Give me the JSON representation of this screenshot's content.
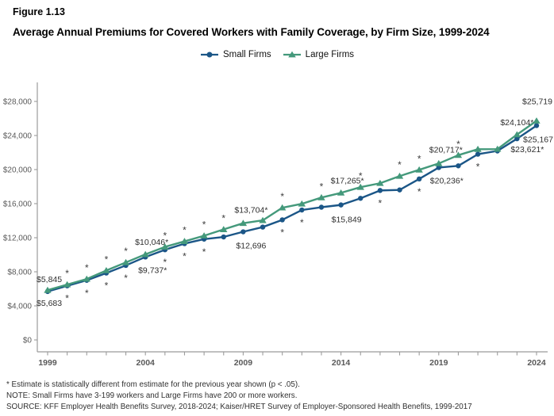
{
  "figure": {
    "number": "Figure 1.13",
    "title": "Average Annual Premiums for Covered Workers with Family Coverage, by Firm Size, 1999-2024"
  },
  "footnotes": [
    "* Estimate is statistically different from estimate for the previous year shown (p < .05).",
    "NOTE: Small Firms have 3-199 workers and Large Firms have 200 or more workers.",
    "SOURCE: KFF Employer Health Benefits Survey, 2018-2024; Kaiser/HRET Survey of Employer-Sponsored Health Benefits, 1999-2017"
  ],
  "chart_data": {
    "type": "line",
    "title": "Average Annual Premiums for Covered Workers with Family Coverage, by Firm Size, 1999-2024",
    "figure_label": "Figure 1.13",
    "x": [
      1999,
      2000,
      2001,
      2002,
      2003,
      2004,
      2005,
      2006,
      2007,
      2008,
      2009,
      2010,
      2011,
      2012,
      2013,
      2014,
      2015,
      2016,
      2017,
      2018,
      2019,
      2020,
      2021,
      2022,
      2023,
      2024
    ],
    "x_tick_label_every": 5,
    "ylim": [
      0,
      28000
    ],
    "y_tick_step": 4000,
    "y_tick_prefix": "$",
    "grid": false,
    "legend_position": "top-center",
    "significance_note": "* = statistically different from previous year shown (p < .05)",
    "series": [
      {
        "name": "Small Firms",
        "marker": "circle",
        "color": "#1b5687",
        "values": [
          5683,
          6350,
          7000,
          7850,
          8750,
          9737,
          10587,
          11306,
          11835,
          12091,
          12696,
          13250,
          14098,
          15253,
          15581,
          15849,
          16625,
          17546,
          17615,
          18900,
          20236,
          20438,
          21804,
          22186,
          23621,
          25167
        ],
        "star_glyph_years": [
          2000,
          2001,
          2002,
          2003,
          2005,
          2006,
          2007,
          2011,
          2012,
          2016,
          2018,
          2021
        ],
        "star_side": "below",
        "labels": [
          {
            "year": 1999,
            "text": "$5,683",
            "dx": -14,
            "dy": 18,
            "anchor": "start"
          },
          {
            "year": 2004,
            "text": "$9,737*",
            "dx": 9,
            "dy": 20
          },
          {
            "year": 2009,
            "text": "$12,696",
            "dx": 10,
            "dy": 21
          },
          {
            "year": 2014,
            "text": "$15,849",
            "dx": 7,
            "dy": 22
          },
          {
            "year": 2019,
            "text": "$20,236*",
            "dx": 10,
            "dy": 20
          },
          {
            "year": 2023,
            "text": "$23,621*",
            "dx": 13,
            "dy": 17
          },
          {
            "year": 2024,
            "text": "$25,167",
            "dx": 2,
            "dy": 21
          }
        ]
      },
      {
        "name": "Large Firms",
        "marker": "triangle",
        "color": "#44997b",
        "values": [
          5845,
          6500,
          7150,
          8150,
          9100,
          10046,
          10924,
          11575,
          12233,
          12973,
          13704,
          14038,
          15520,
          15980,
          16715,
          17265,
          17938,
          18395,
          19235,
          19972,
          20717,
          21691,
          22389,
          22404,
          24104,
          25719
        ],
        "star_glyph_years": [
          2000,
          2001,
          2002,
          2003,
          2005,
          2006,
          2007,
          2008,
          2011,
          2013,
          2015,
          2017,
          2018,
          2020
        ],
        "star_side": "above",
        "labels": [
          {
            "year": 1999,
            "text": "$5,845",
            "dx": -14,
            "dy": -10,
            "anchor": "start"
          },
          {
            "year": 2004,
            "text": "$10,046*",
            "dx": 8,
            "dy": -12
          },
          {
            "year": 2009,
            "text": "$13,704*",
            "dx": 10,
            "dy": -13
          },
          {
            "year": 2014,
            "text": "$17,265*",
            "dx": 8,
            "dy": -12
          },
          {
            "year": 2019,
            "text": "$20,717*",
            "dx": 9,
            "dy": -14
          },
          {
            "year": 2023,
            "text": "$24,104*",
            "dx": 0,
            "dy": -12
          },
          {
            "year": 2024,
            "text": "$25,719",
            "dx": 1,
            "dy": -21
          }
        ]
      }
    ]
  }
}
